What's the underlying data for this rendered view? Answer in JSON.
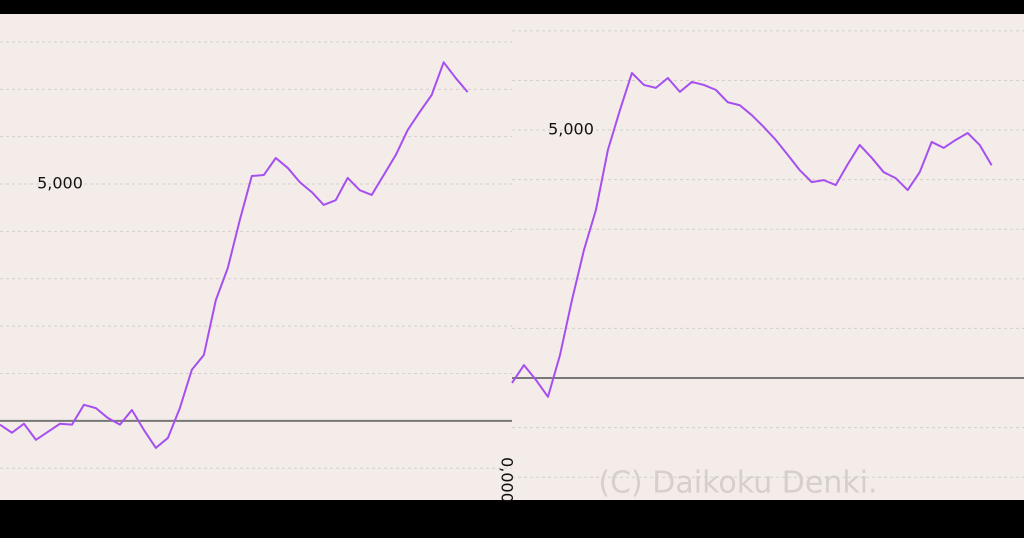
{
  "chart_data": [
    {
      "type": "line",
      "series": [
        {
          "color": "#a64ff0",
          "values": [
            -80,
            -250,
            -60,
            -400,
            -230,
            -60,
            -80,
            340,
            270,
            60,
            -80,
            230,
            -190,
            -570,
            -360,
            270,
            1080,
            1390,
            2550,
            3230,
            4240,
            5170,
            5190,
            5550,
            5340,
            5040,
            4830,
            4560,
            4660,
            5130,
            4870,
            4770,
            5190,
            5610,
            6140,
            6520,
            6880,
            7570,
            7240,
            6940
          ]
        }
      ],
      "xlim": [
        0,
        42.7
      ],
      "ylim": [
        -1670,
        8590
      ],
      "yticks": [
        {
          "value": -1000,
          "label": null
        },
        {
          "value": 0,
          "label": null
        },
        {
          "value": 1000,
          "label": null
        },
        {
          "value": 2000,
          "label": null
        },
        {
          "value": 3000,
          "label": null
        },
        {
          "value": 4000,
          "label": null
        },
        {
          "value": 5000,
          "label": "5,000"
        },
        {
          "value": 6000,
          "label": null
        },
        {
          "value": 7000,
          "label": null
        },
        {
          "value": 8000,
          "label": null
        }
      ],
      "zero_line": 0,
      "grid": true
    },
    {
      "type": "line",
      "series": [
        {
          "color": "#a64ff0",
          "values": [
            -100,
            260,
            -40,
            -380,
            460,
            1570,
            2580,
            3390,
            4600,
            5400,
            6150,
            5910,
            5850,
            6050,
            5770,
            5970,
            5910,
            5810,
            5560,
            5500,
            5300,
            5060,
            4800,
            4500,
            4190,
            3950,
            3990,
            3890,
            4310,
            4700,
            4440,
            4150,
            4030,
            3790,
            4150,
            4760,
            4640,
            4800,
            4940,
            4700,
            4290
          ]
        }
      ],
      "xlim": [
        0,
        42.7
      ],
      "ylim": [
        -2460,
        7340
      ],
      "yticks": [
        {
          "value": -2000,
          "label": null
        },
        {
          "value": -1000,
          "label": null
        },
        {
          "value": 0,
          "label": null
        },
        {
          "value": 1000,
          "label": null
        },
        {
          "value": 2000,
          "label": null
        },
        {
          "value": 3000,
          "label": null
        },
        {
          "value": 4000,
          "label": null
        },
        {
          "value": 5000,
          "label": "5,000"
        },
        {
          "value": 6000,
          "label": null
        },
        {
          "value": 7000,
          "label": null
        }
      ],
      "zero_line": 0,
      "grid": true,
      "annotation": "0,000",
      "watermark": "(C) Daikoku Denki."
    }
  ]
}
